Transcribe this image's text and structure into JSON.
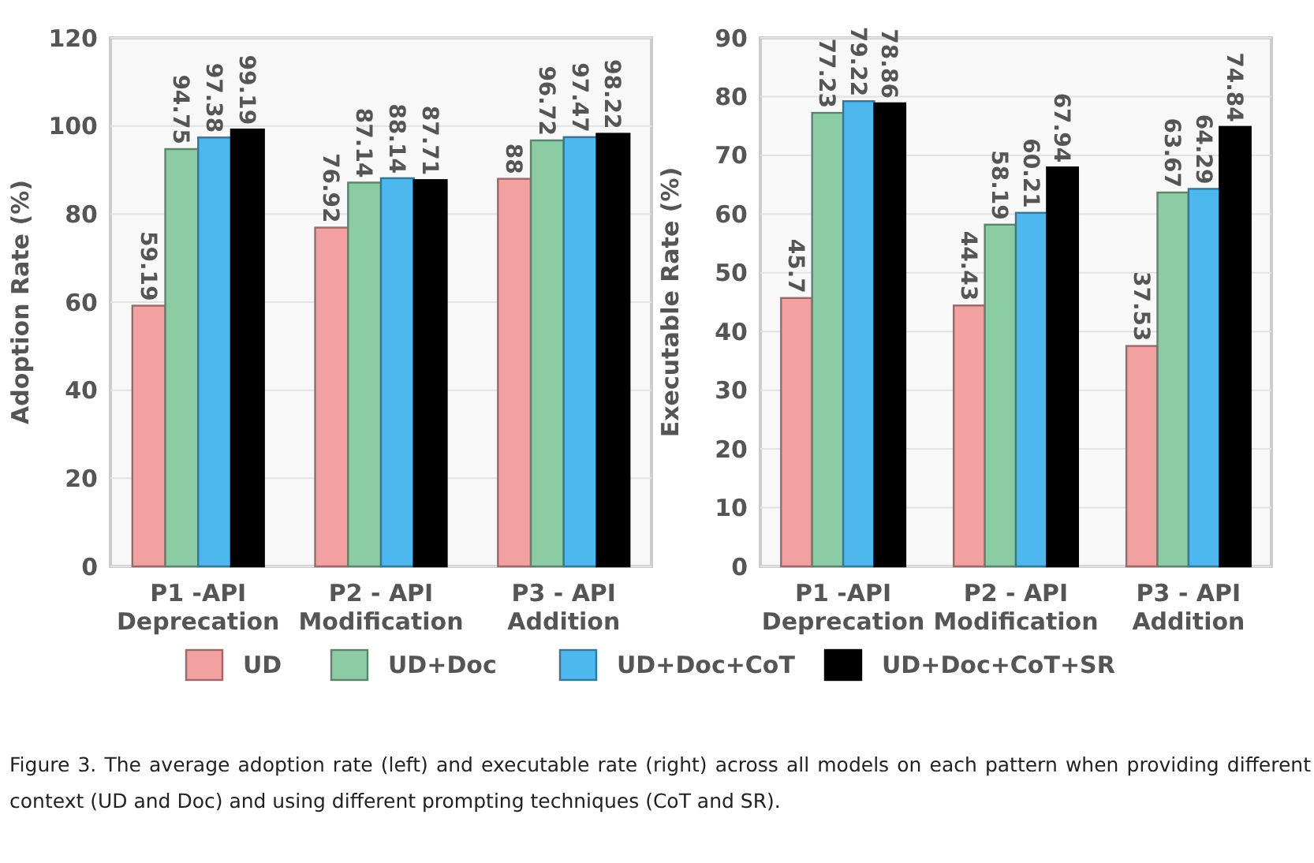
{
  "chart_data": [
    {
      "type": "bar",
      "ylabel": "Adoption Rate (%)",
      "categories": [
        "P1 -API\nDeprecation",
        "P2 - API\nModification",
        "P3 - API\nAddition"
      ],
      "series": [
        {
          "name": "UD",
          "color": "#f2a0a0",
          "values": [
            59.19,
            76.92,
            88
          ]
        },
        {
          "name": "UD+Doc",
          "color": "#8ccca4",
          "values": [
            94.75,
            87.14,
            96.72
          ]
        },
        {
          "name": "UD+Doc+CoT",
          "color": "#4cb8ee",
          "values": [
            97.38,
            88.14,
            97.47
          ]
        },
        {
          "name": "UD+Doc+CoT+SR",
          "color": "#000000",
          "values": [
            99.19,
            87.71,
            98.22
          ]
        }
      ],
      "ylim": [
        0,
        120
      ],
      "yticks": [
        0,
        20,
        40,
        60,
        80,
        100,
        120
      ],
      "grid": "y",
      "legend": "bottom",
      "data_labels": true,
      "annotations": [
        "Figure 3. The average adoption rate (left) and executable rate (right) across all models on each pattern when providing different context (UD and Doc) and using different prompting techniques (CoT and SR)."
      ]
    },
    {
      "type": "bar",
      "ylabel": "Executable Rate (%)",
      "categories": [
        "P1 -API\nDeprecation",
        "P2 - API\nModification",
        "P3 - API\nAddition"
      ],
      "series": [
        {
          "color": "#f2a0a0",
          "values": [
            45.7,
            44.43,
            37.53
          ]
        },
        {
          "color": "#8ccca4",
          "values": [
            77.23,
            58.19,
            63.67
          ]
        },
        {
          "color": "#4cb8ee",
          "values": [
            79.22,
            60.21,
            64.29
          ]
        },
        {
          "color": "#000000",
          "values": [
            78.86,
            67.94,
            74.84
          ]
        }
      ],
      "ylim": [
        0,
        90
      ],
      "yticks": [
        0,
        10,
        20,
        30,
        40,
        50,
        60,
        70,
        80,
        90
      ],
      "grid": "y",
      "data_labels": true
    }
  ]
}
